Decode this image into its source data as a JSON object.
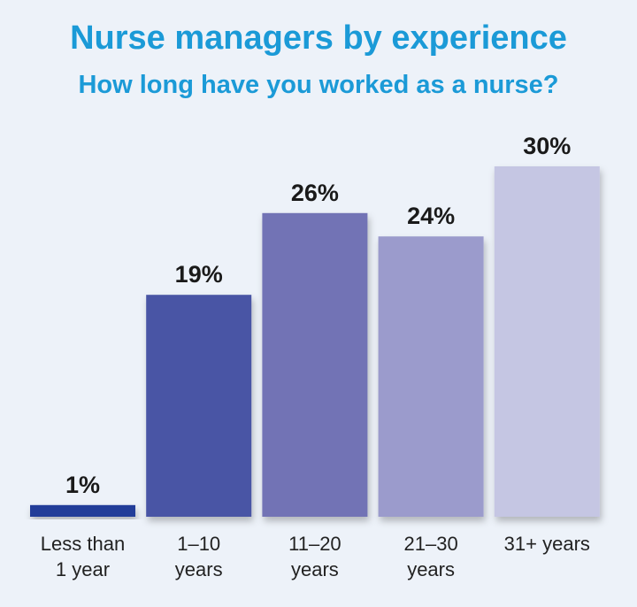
{
  "chart_data": {
    "type": "bar",
    "title": "Nurse managers by experience",
    "subtitle": "How long have you worked as a nurse?",
    "categories": [
      [
        "Less than",
        "1 year"
      ],
      [
        "1–10",
        "years"
      ],
      [
        "11–20",
        "years"
      ],
      [
        "21–30",
        "years"
      ],
      [
        "31+ years"
      ]
    ],
    "values": [
      1,
      19,
      26,
      24,
      30
    ],
    "labels": [
      "1%",
      "19%",
      "26%",
      "24%",
      "30%"
    ],
    "colors": [
      "#213d99",
      "#4a55a5",
      "#7273b5",
      "#9b9bcc",
      "#c5c6e3"
    ],
    "ylim": [
      0,
      30
    ],
    "grid": false
  }
}
